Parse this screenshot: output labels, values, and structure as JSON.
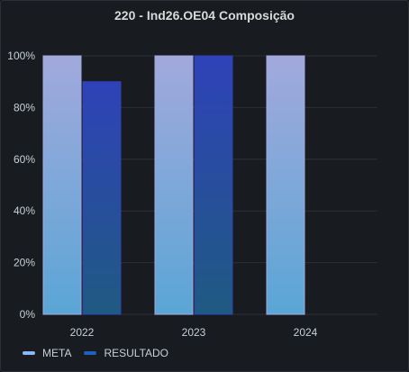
{
  "panel": {
    "title": "220 - Ind26.OE04 Composição"
  },
  "colors": {
    "background": "#181b1f",
    "grid": "#2c2f35",
    "axis_text": "#c7d0d9",
    "meta_top": "#a2a9dc",
    "meta_bottom": "#5aa6d6",
    "meta_legend": "#8ab8ff",
    "resultado_top": "#2f42b8",
    "resultado_bottom": "#1f5a82",
    "resultado_legend": "#1f60c4"
  },
  "chart_data": {
    "type": "bar",
    "title": "220 - Ind26.OE04 Composição",
    "categories": [
      "2022",
      "2023",
      "2024"
    ],
    "series": [
      {
        "name": "META",
        "values": [
          100,
          100,
          100
        ]
      },
      {
        "name": "RESULTADO",
        "values": [
          90,
          100,
          null
        ]
      }
    ],
    "ylim": [
      0,
      100
    ],
    "yticks": [
      "0%",
      "20%",
      "40%",
      "60%",
      "80%",
      "100%"
    ],
    "grid": true,
    "legend_position": "bottom-left"
  },
  "legend": {
    "meta_label": "META",
    "resultado_label": "RESULTADO"
  }
}
